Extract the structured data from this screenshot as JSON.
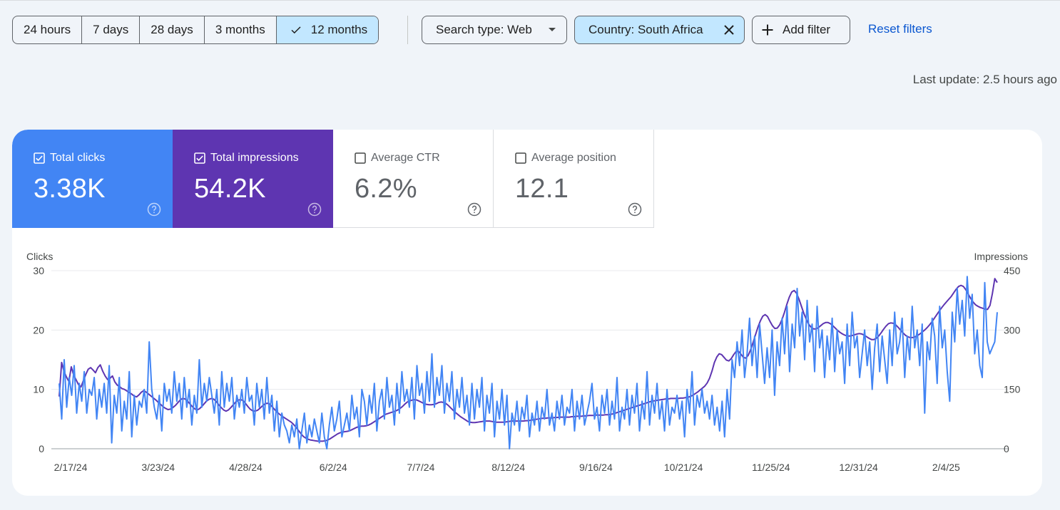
{
  "date_range": {
    "options": [
      "24 hours",
      "7 days",
      "28 days",
      "3 months",
      "12 months"
    ],
    "selected_index": 4
  },
  "filters": {
    "search_type": "Search type: Web",
    "country": "Country: South Africa",
    "add_filter": "Add filter",
    "reset": "Reset filters"
  },
  "last_update": "Last update: 2.5 hours ago",
  "metrics": [
    {
      "label": "Total clicks",
      "value": "3.38K",
      "checked": true,
      "color": "#4285f4"
    },
    {
      "label": "Total impressions",
      "value": "54.2K",
      "checked": true,
      "color": "#5e35b1"
    },
    {
      "label": "Average CTR",
      "value": "6.2%",
      "checked": false
    },
    {
      "label": "Average position",
      "value": "12.1",
      "checked": false
    }
  ],
  "icons": {
    "check": "check-icon",
    "caret": "caret-down-icon",
    "close": "close-icon",
    "plus": "plus-icon",
    "checkbox": "checkbox-icon",
    "help": "help-icon"
  },
  "chart_data": {
    "type": "line",
    "xlabel": "",
    "ylabel_left": "Clicks",
    "ylabel_right": "Impressions",
    "y_left_ticks": [
      "0",
      "10",
      "20",
      "30"
    ],
    "y_right_ticks": [
      "0",
      "150",
      "300",
      "450"
    ],
    "ylim_left": [
      0,
      30
    ],
    "ylim_right": [
      0,
      450
    ],
    "x_tick_labels": [
      "2/17/24",
      "3/23/24",
      "4/28/24",
      "6/2/24",
      "7/7/24",
      "8/12/24",
      "9/16/24",
      "10/21/24",
      "11/25/24",
      "12/31/24",
      "2/4/25"
    ],
    "grid": true,
    "series": [
      {
        "name": "Clicks",
        "axis": "left",
        "color": "#4285f4",
        "values": [
          11,
          5,
          15,
          7,
          12,
          9,
          14,
          6,
          11,
          8,
          13,
          6,
          10,
          9,
          12,
          5,
          10,
          7,
          11,
          6,
          14,
          1,
          9,
          6,
          12,
          3,
          8,
          5,
          13,
          2,
          9,
          4,
          8,
          7,
          10,
          6,
          18,
          10,
          7,
          5,
          9,
          3,
          11,
          8,
          10,
          6,
          13,
          8,
          11,
          5,
          12,
          7,
          10,
          4,
          9,
          6,
          15,
          7,
          11,
          8,
          12,
          9,
          6,
          10,
          4,
          13,
          7,
          11,
          8,
          12,
          5,
          9,
          7,
          10,
          6,
          12,
          8,
          9,
          4,
          11,
          7,
          10,
          5,
          12,
          6,
          9,
          3,
          8,
          2,
          6,
          4,
          3,
          1,
          4,
          2,
          5,
          0,
          3,
          6,
          1,
          4,
          2,
          5,
          3,
          1,
          6,
          2,
          0,
          4,
          7,
          3,
          5,
          8,
          2,
          4,
          6,
          3,
          9,
          5,
          7,
          2,
          10,
          8,
          4,
          9,
          6,
          11,
          3,
          8,
          10,
          5,
          12,
          7,
          9,
          4,
          11,
          6,
          13,
          8,
          10,
          7,
          12,
          5,
          14,
          9,
          11,
          6,
          13,
          8,
          16,
          7,
          12,
          9,
          14,
          6,
          11,
          8,
          13,
          5,
          10,
          7,
          12,
          6,
          9,
          4,
          11,
          5,
          10,
          7,
          12,
          3,
          9,
          6,
          11,
          2,
          8,
          5,
          10,
          4,
          9,
          0,
          6,
          4,
          8,
          3,
          7,
          5,
          9,
          2,
          6,
          4,
          8,
          3,
          7,
          5,
          10,
          4,
          6,
          3,
          8,
          5,
          9,
          4,
          7,
          6,
          10,
          3,
          8,
          5,
          9,
          4,
          6,
          8,
          11,
          5,
          7,
          3,
          9,
          6,
          10,
          4,
          8,
          5,
          12,
          3,
          7,
          5,
          10,
          4,
          9,
          6,
          11,
          3,
          8,
          5,
          13,
          4,
          9,
          6,
          11,
          5,
          8,
          3,
          10,
          4,
          7,
          6,
          9,
          5,
          8,
          2,
          10,
          6,
          13,
          4,
          9,
          7,
          10,
          6,
          8,
          5,
          9,
          4,
          7,
          3,
          8,
          2,
          10,
          5,
          15,
          12,
          18,
          14,
          20,
          12,
          16,
          22,
          14,
          19,
          12,
          21,
          16,
          11,
          17,
          12,
          20,
          9,
          18,
          14,
          22,
          16,
          24,
          13,
          21,
          17,
          27,
          19,
          23,
          15,
          25,
          18,
          21,
          13,
          24,
          17,
          20,
          12,
          19,
          15,
          22,
          13,
          20,
          16,
          18,
          11,
          21,
          14,
          23,
          17,
          19,
          12,
          16,
          20,
          14,
          18,
          10,
          17,
          21,
          13,
          19,
          15,
          11,
          20,
          14,
          23,
          16,
          18,
          22,
          12,
          19,
          15,
          24,
          17,
          20,
          14,
          21,
          6,
          18,
          15,
          22,
          19,
          11,
          24,
          17,
          20,
          13,
          8,
          23,
          18,
          27,
          21,
          25,
          19,
          29,
          22,
          26,
          16,
          20,
          14,
          12,
          28,
          18,
          16,
          17,
          18,
          23
        ]
      },
      {
        "name": "Impressions",
        "axis": "right",
        "color": "#5e35b1",
        "values": [
          132,
          218,
          195,
          181,
          170,
          207,
          186,
          174,
          162,
          156,
          172,
          188,
          201,
          205,
          199,
          192,
          205,
          212,
          196,
          184,
          175,
          178,
          184,
          169,
          161,
          157,
          152,
          150,
          146,
          142,
          138,
          133,
          131,
          136,
          143,
          147,
          143,
          138,
          133,
          128,
          123,
          117,
          112,
          106,
          102,
          99,
          100,
          104,
          109,
          116,
          123,
          127,
          126,
          121,
          114,
          107,
          101,
          98,
          101,
          107,
          114,
          121,
          125,
          127,
          125,
          119,
          111,
          104,
          98,
          95,
          98,
          104,
          111,
          118,
          123,
          124,
          122,
          115,
          107,
          100,
          96,
          95,
          97,
          102,
          108,
          113,
          115,
          113,
          107,
          100,
          93,
          88,
          83,
          79,
          75,
          71,
          67,
          61,
          54,
          46,
          38,
          31,
          27,
          24,
          22,
          21,
          20,
          19,
          19,
          19,
          20,
          22,
          25,
          29,
          33,
          37,
          40,
          42,
          43,
          44,
          45,
          48,
          51,
          54,
          56,
          57,
          57,
          58,
          60,
          63,
          67,
          71,
          75,
          79,
          83,
          87,
          89,
          91,
          93,
          95,
          98,
          102,
          107,
          113,
          118,
          121,
          123,
          124,
          123,
          120,
          117,
          114,
          112,
          111,
          111,
          112,
          114,
          117,
          118,
          117,
          114,
          109,
          103,
          97,
          91,
          86,
          81,
          77,
          73,
          69,
          67,
          66,
          66,
          67,
          68,
          69,
          70,
          70,
          70,
          69,
          68,
          67,
          67,
          67,
          67,
          68,
          69,
          70,
          70,
          70,
          70,
          70,
          70,
          71,
          71,
          72,
          73,
          74,
          75,
          76,
          77,
          77,
          78,
          78,
          78,
          79,
          79,
          80,
          80,
          80,
          80,
          80,
          81,
          81,
          82,
          82,
          82,
          83,
          83,
          84,
          84,
          84,
          85,
          85,
          85,
          85,
          86,
          86,
          87,
          88,
          90,
          92,
          94,
          96,
          98,
          100,
          102,
          104,
          106,
          108,
          110,
          112,
          114,
          116,
          118,
          120,
          121,
          122,
          123,
          124,
          125,
          126,
          126,
          127,
          127,
          127,
          127,
          128,
          128,
          129,
          130,
          132,
          135,
          139,
          143,
          148,
          153,
          158,
          166,
          178,
          196,
          218,
          232,
          240,
          238,
          231,
          224,
          222,
          228,
          238,
          246,
          246,
          239,
          231,
          229,
          236,
          250,
          268,
          288,
          307,
          323,
          335,
          339,
          334,
          322,
          311,
          304,
          305,
          313,
          327,
          345,
          365,
          383,
          396,
          400,
          393,
          378,
          360,
          342,
          327,
          315,
          307,
          303,
          303,
          306,
          311,
          316,
          319,
          319,
          316,
          311,
          305,
          299,
          294,
          290,
          287,
          285,
          285,
          286,
          288,
          290,
          291,
          290,
          287,
          283,
          279,
          276,
          276,
          279,
          285,
          293,
          302,
          310,
          316,
          318,
          317,
          313,
          307,
          300,
          293,
          287,
          283,
          281,
          281,
          283,
          286,
          290,
          295,
          300,
          306,
          313,
          321,
          330,
          339,
          348,
          356,
          364,
          371,
          378,
          385,
          394,
          403,
          410,
          413,
          410,
          402,
          391,
          380,
          371,
          364,
          360,
          357,
          355,
          353,
          352,
          362,
          392,
          430,
          420
        ]
      }
    ]
  }
}
